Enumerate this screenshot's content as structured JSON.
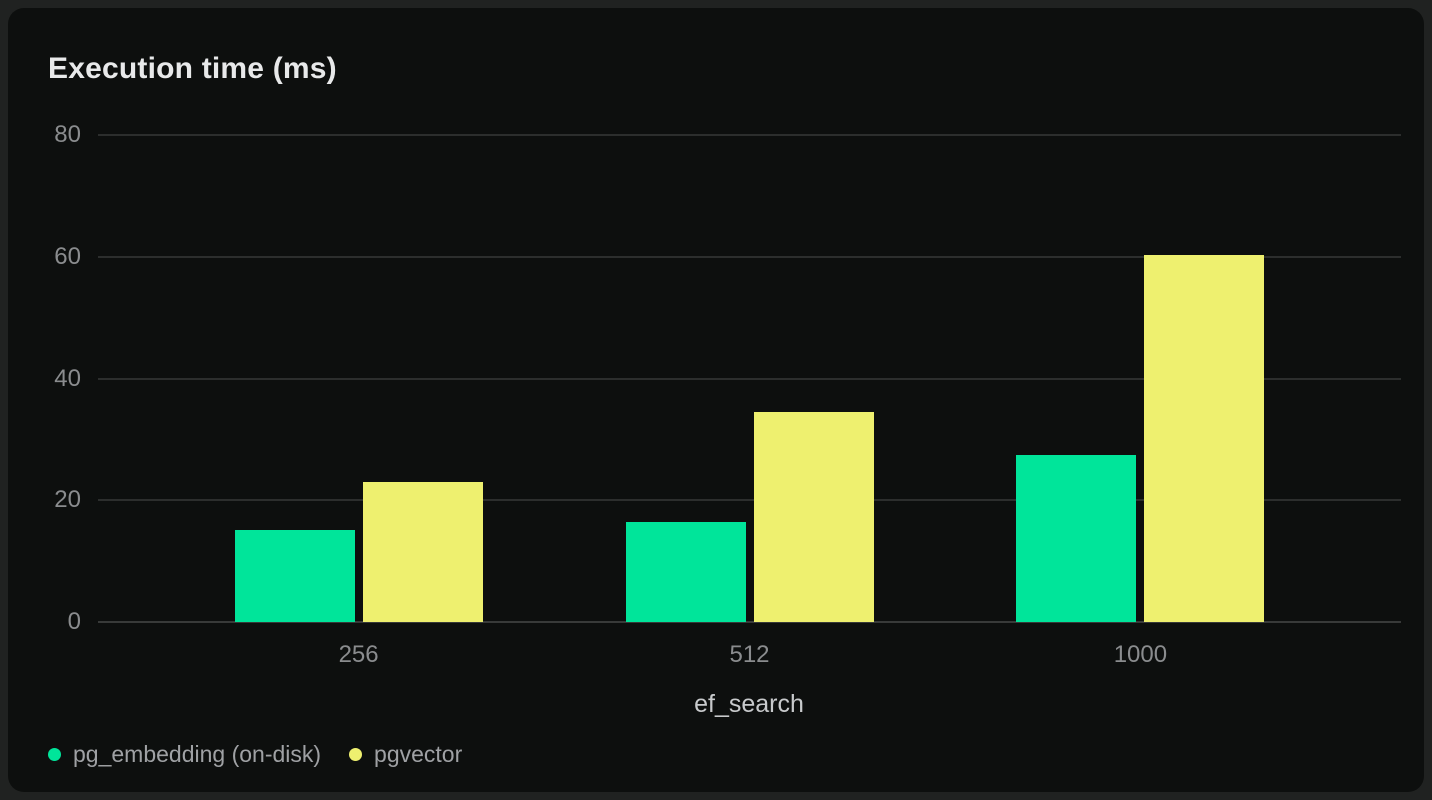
{
  "chart_data": {
    "type": "bar",
    "title": "Execution time (ms)",
    "xlabel": "ef_search",
    "ylabel": "",
    "categories": [
      "256",
      "512",
      "1000"
    ],
    "series": [
      {
        "name": "pg_embedding (on-disk)",
        "color": "#00e59a",
        "values": [
          15.1,
          16.4,
          27.5
        ]
      },
      {
        "name": "pgvector",
        "color": "#eef06f",
        "values": [
          23,
          34.5,
          60.3
        ]
      }
    ],
    "ylim": [
      0,
      80
    ],
    "yticks": [
      0,
      20,
      40,
      60,
      80
    ],
    "grid": true,
    "legend_position": "bottom-left",
    "colors": {
      "card_background": "#0d0f0e",
      "page_background": "#202221",
      "gridline": "#2c2e2d",
      "tick_label": "#8a8c8e",
      "axis_title": "#c8cacc",
      "legend_label": "#9fa1a4",
      "title": "#e8e9ea"
    }
  }
}
